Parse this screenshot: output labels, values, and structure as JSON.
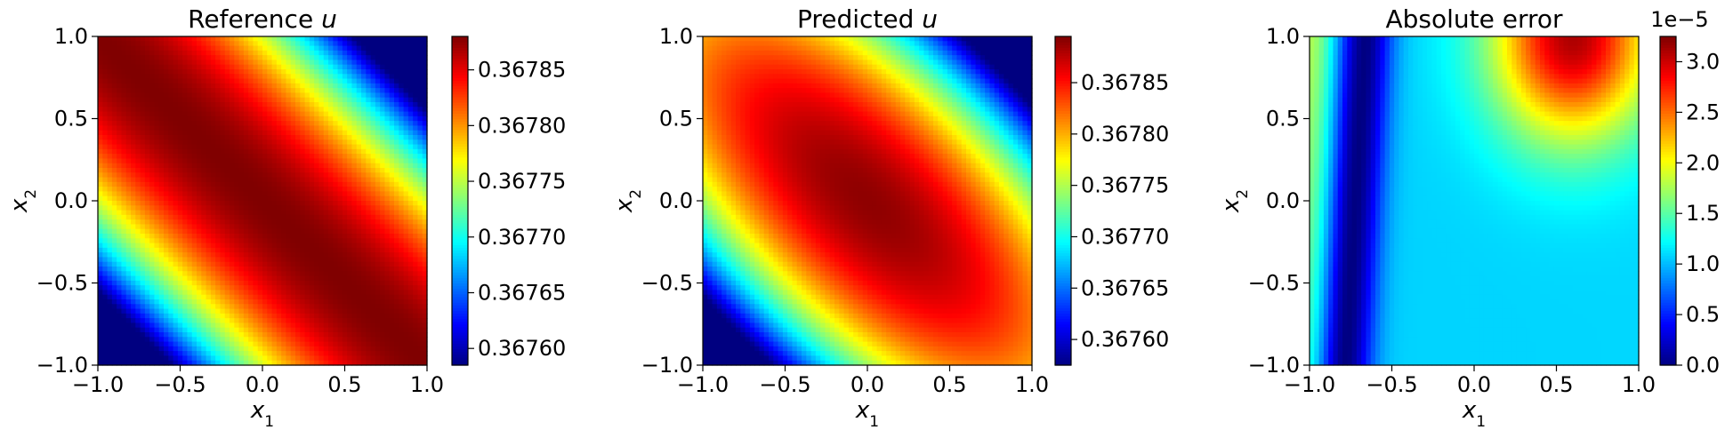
{
  "chart_data": [
    {
      "type": "heatmap",
      "title": "Reference u",
      "title_text": "Reference ",
      "title_var": "u",
      "xlabel": "x",
      "xlabel_sub": "1",
      "ylabel": "x",
      "ylabel_sub": "2",
      "xlim": [
        -1.0,
        1.0
      ],
      "ylim": [
        -1.0,
        1.0
      ],
      "x_ticks": [
        "−1.0",
        "−0.5",
        "0.0",
        "0.5",
        "1.0"
      ],
      "y_ticks": [
        "−1.0",
        "−0.5",
        "0.0",
        "0.5",
        "1.0"
      ],
      "colormap": "jet",
      "colorbar": {
        "min": 0.367585,
        "max": 0.36788,
        "ticks": [
          0.3676,
          0.36765,
          0.3677,
          0.36775,
          0.3678,
          0.36785
        ],
        "tick_labels": [
          "0.36760",
          "0.36765",
          "0.36770",
          "0.36775",
          "0.36780",
          "0.36785"
        ],
        "offset_label": ""
      },
      "field": "reference"
    },
    {
      "type": "heatmap",
      "title": "Predicted u",
      "title_text": "Predicted ",
      "title_var": "u",
      "xlabel": "x",
      "xlabel_sub": "1",
      "ylabel": "x",
      "ylabel_sub": "2",
      "xlim": [
        -1.0,
        1.0
      ],
      "ylim": [
        -1.0,
        1.0
      ],
      "x_ticks": [
        "−1.0",
        "−0.5",
        "0.0",
        "0.5",
        "1.0"
      ],
      "y_ticks": [
        "−1.0",
        "−0.5",
        "0.0",
        "0.5",
        "1.0"
      ],
      "colormap": "jet",
      "colorbar": {
        "min": 0.367575,
        "max": 0.367895,
        "ticks": [
          0.3676,
          0.36765,
          0.3677,
          0.36775,
          0.3678,
          0.36785
        ],
        "tick_labels": [
          "0.36760",
          "0.36765",
          "0.36770",
          "0.36775",
          "0.36780",
          "0.36785"
        ],
        "offset_label": ""
      },
      "field": "predicted"
    },
    {
      "type": "heatmap",
      "title": "Absolute error",
      "title_text": "Absolute error",
      "title_var": "",
      "xlabel": "x",
      "xlabel_sub": "1",
      "ylabel": "x",
      "ylabel_sub": "2",
      "xlim": [
        -1.0,
        1.0
      ],
      "ylim": [
        -1.0,
        1.0
      ],
      "x_ticks": [
        "−1.0",
        "−0.5",
        "0.0",
        "0.5",
        "1.0"
      ],
      "y_ticks": [
        "−1.0",
        "−0.5",
        "0.0",
        "0.5",
        "1.0"
      ],
      "colormap": "jet",
      "colorbar": {
        "min": 0.0,
        "max": 3.25,
        "ticks": [
          0.0,
          0.5,
          1.0,
          1.5,
          2.0,
          2.5,
          3.0
        ],
        "tick_labels": [
          "0.0",
          "0.5",
          "1.0",
          "1.5",
          "2.0",
          "2.5",
          "3.0"
        ],
        "offset_label": "1e−5"
      },
      "field": "error"
    }
  ]
}
